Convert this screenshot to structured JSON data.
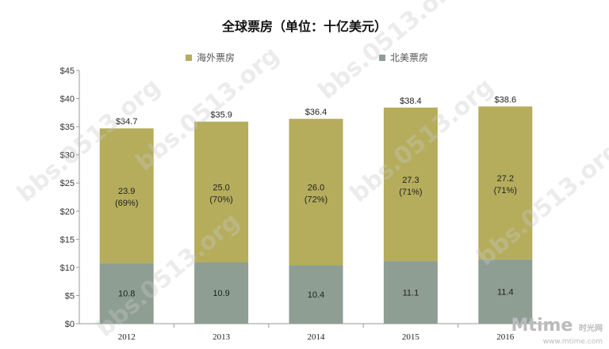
{
  "watermark": "bbs.0513.org",
  "logo": {
    "brand": "Mtime",
    "cn": "时光网",
    "url_text": "www.mtime.com"
  },
  "chart_data": {
    "type": "bar",
    "stacked": true,
    "title": "全球票房（单位：十亿美元）",
    "categories": [
      "2012",
      "2013",
      "2014",
      "2015",
      "2016"
    ],
    "series": [
      {
        "name": "北美票房",
        "color": "#8e9e93",
        "values": [
          10.8,
          10.9,
          10.4,
          11.1,
          11.4
        ],
        "labels": [
          "10.8",
          "10.9",
          "10.4",
          "11.1",
          "11.4"
        ]
      },
      {
        "name": "海外票房",
        "color": "#b5ad5c",
        "values": [
          23.9,
          25.0,
          26.0,
          27.3,
          27.2
        ],
        "labels": [
          "23.9",
          "25.0",
          "26.0",
          "27.3",
          "27.2"
        ],
        "shares": [
          "(69%)",
          "(70%)",
          "(72%)",
          "(71%)",
          "(71%)"
        ]
      }
    ],
    "totals": [
      "$34.7",
      "$35.9",
      "$36.4",
      "$38.4",
      "$38.6"
    ],
    "ylim": [
      0,
      45
    ],
    "yticks": [
      "$0",
      "$5",
      "$10",
      "$15",
      "$20",
      "$25",
      "$30",
      "$35",
      "$40",
      "$45"
    ],
    "grid": false,
    "legend": "top"
  }
}
